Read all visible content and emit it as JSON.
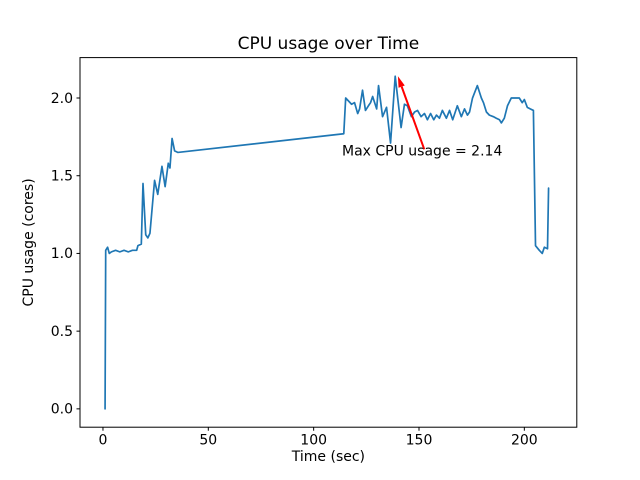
{
  "chart_data": {
    "type": "line",
    "title": "CPU usage over Time",
    "xlabel": "Time (sec)",
    "ylabel": "CPU usage (cores)",
    "xlim": [
      -10.9,
      224.9
    ],
    "ylim": [
      -0.118,
      2.26
    ],
    "xticks": [
      0,
      50,
      100,
      150,
      200
    ],
    "xtick_labels": [
      "0",
      "50",
      "100",
      "150",
      "200"
    ],
    "yticks": [
      0,
      0.5,
      1.0,
      1.5,
      2.0
    ],
    "ytick_labels": [
      "0.0",
      "0.5",
      "1.0",
      "1.5",
      "2.0"
    ],
    "grid": false,
    "line_color": "#1f77b4",
    "background_color": "#ffffff",
    "annotation": {
      "text": "Max CPU usage = 2.14",
      "color": "#ff0000",
      "arrow_tip": [
        140,
        2.14
      ],
      "arrow_start": [
        152.5,
        1.67
      ],
      "text_pos": [
        113.5,
        1.63
      ]
    },
    "max_value": 2.14,
    "series": [
      {
        "name": "CPU usage (cores)",
        "points": [
          [
            1,
            0
          ],
          [
            1.3,
            1.02
          ],
          [
            2.2,
            1.04
          ],
          [
            3,
            1
          ],
          [
            4,
            1.01
          ],
          [
            6,
            1.02
          ],
          [
            8,
            1.01
          ],
          [
            10,
            1.02
          ],
          [
            12,
            1.01
          ],
          [
            14,
            1.02
          ],
          [
            16,
            1.02
          ],
          [
            16.6,
            1.05
          ],
          [
            18.2,
            1.06
          ],
          [
            19,
            1.45
          ],
          [
            20.3,
            1.12
          ],
          [
            21.3,
            1.1
          ],
          [
            22.3,
            1.13
          ],
          [
            24.5,
            1.47
          ],
          [
            26,
            1.38
          ],
          [
            28,
            1.56
          ],
          [
            29.5,
            1.43
          ],
          [
            31,
            1.58
          ],
          [
            31.8,
            1.55
          ],
          [
            32.8,
            1.74
          ],
          [
            34,
            1.66
          ],
          [
            35.5,
            1.65
          ],
          [
            114.3,
            1.77
          ],
          [
            115.2,
            2
          ],
          [
            116.6,
            1.98
          ],
          [
            118,
            1.96
          ],
          [
            119.4,
            1.97
          ],
          [
            120.9,
            1.9
          ],
          [
            121.8,
            1.93
          ],
          [
            123.2,
            2.05
          ],
          [
            124.6,
            1.92
          ],
          [
            126,
            1.95
          ],
          [
            127,
            1.97
          ],
          [
            128,
            2.01
          ],
          [
            129.9,
            1.93
          ],
          [
            130.8,
            2.08
          ],
          [
            132.7,
            1.88
          ],
          [
            134.6,
            1.94
          ],
          [
            136.5,
            1.71
          ],
          [
            138.7,
            2.14
          ],
          [
            141.5,
            1.81
          ],
          [
            143.1,
            1.96
          ],
          [
            144.5,
            1.95
          ],
          [
            146.4,
            1.88
          ],
          [
            147.9,
            1.91
          ],
          [
            149.3,
            1.92
          ],
          [
            151,
            1.88
          ],
          [
            152.6,
            1.9
          ],
          [
            154,
            1.86
          ],
          [
            155.5,
            1.9
          ],
          [
            157,
            1.86
          ],
          [
            158.3,
            1.89
          ],
          [
            159.7,
            1.87
          ],
          [
            161.1,
            1.92
          ],
          [
            163,
            1.87
          ],
          [
            164.5,
            1.92
          ],
          [
            166,
            1.86
          ],
          [
            168.2,
            1.95
          ],
          [
            170.1,
            1.88
          ],
          [
            171.6,
            1.93
          ],
          [
            173,
            1.89
          ],
          [
            174,
            1.91
          ],
          [
            175.4,
            2
          ],
          [
            177.7,
            2.08
          ],
          [
            179.6,
            2
          ],
          [
            180.6,
            1.97
          ],
          [
            182,
            1.91
          ],
          [
            183.4,
            1.89
          ],
          [
            185.3,
            1.88
          ],
          [
            186.7,
            1.87
          ],
          [
            188.2,
            1.86
          ],
          [
            189.1,
            1.84
          ],
          [
            190.5,
            1.87
          ],
          [
            192,
            1.95
          ],
          [
            193.8,
            2
          ],
          [
            195.7,
            2
          ],
          [
            197.6,
            2
          ],
          [
            199,
            1.97
          ],
          [
            200,
            1.99
          ],
          [
            201.4,
            1.94
          ],
          [
            202.8,
            1.93
          ],
          [
            204.3,
            1.92
          ],
          [
            205.3,
            1.05
          ],
          [
            207.1,
            1.02
          ],
          [
            208.5,
            1
          ],
          [
            209.5,
            1.04
          ],
          [
            211,
            1.03
          ],
          [
            211.5,
            1.42
          ]
        ]
      }
    ]
  }
}
